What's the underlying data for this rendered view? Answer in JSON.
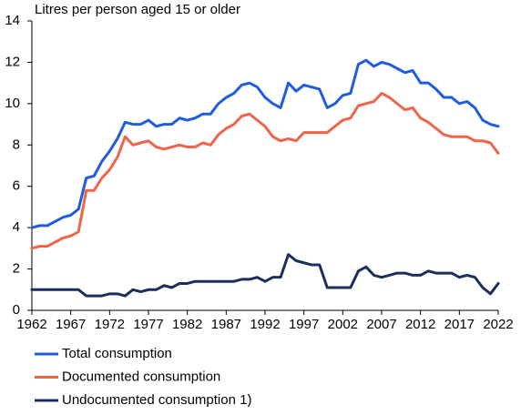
{
  "chart_data": {
    "type": "line",
    "y_axis_label": "Litres per person aged 15 or older",
    "x": [
      1962,
      1963,
      1964,
      1965,
      1966,
      1967,
      1968,
      1969,
      1970,
      1971,
      1972,
      1973,
      1974,
      1975,
      1976,
      1977,
      1978,
      1979,
      1980,
      1981,
      1982,
      1983,
      1984,
      1985,
      1986,
      1987,
      1988,
      1989,
      1990,
      1991,
      1992,
      1993,
      1994,
      1995,
      1996,
      1997,
      1998,
      1999,
      2000,
      2001,
      2002,
      2003,
      2004,
      2005,
      2006,
      2007,
      2008,
      2009,
      2010,
      2011,
      2012,
      2013,
      2014,
      2015,
      2016,
      2017,
      2018,
      2019,
      2020,
      2021,
      2022
    ],
    "series": [
      {
        "name": "Total consumption",
        "color": "#1f5ce0",
        "values": [
          4.0,
          4.1,
          4.1,
          4.3,
          4.5,
          4.6,
          4.9,
          6.4,
          6.5,
          7.2,
          7.7,
          8.3,
          9.1,
          9.0,
          9.0,
          9.2,
          8.9,
          9.0,
          9.0,
          9.3,
          9.2,
          9.3,
          9.5,
          9.5,
          10.0,
          10.3,
          10.5,
          10.9,
          11.0,
          10.8,
          10.3,
          10.0,
          9.8,
          11.0,
          10.6,
          10.9,
          10.8,
          10.7,
          9.8,
          10.0,
          10.4,
          10.5,
          11.9,
          12.1,
          11.8,
          12.0,
          11.9,
          11.7,
          11.5,
          11.6,
          11.0,
          11.0,
          10.7,
          10.3,
          10.3,
          10.0,
          10.1,
          9.8,
          9.2,
          9.0,
          8.9
        ]
      },
      {
        "name": "Documented consumption",
        "color": "#f0644a",
        "values": [
          3.0,
          3.1,
          3.1,
          3.3,
          3.5,
          3.6,
          3.8,
          5.8,
          5.8,
          6.4,
          6.8,
          7.4,
          8.4,
          8.0,
          8.1,
          8.2,
          7.9,
          7.8,
          7.9,
          8.0,
          7.9,
          7.9,
          8.1,
          8.0,
          8.5,
          8.8,
          9.0,
          9.4,
          9.5,
          9.2,
          8.9,
          8.4,
          8.2,
          8.3,
          8.2,
          8.6,
          8.6,
          8.6,
          8.6,
          8.9,
          9.2,
          9.3,
          9.9,
          10.0,
          10.1,
          10.5,
          10.3,
          10.0,
          9.7,
          9.8,
          9.3,
          9.1,
          8.8,
          8.5,
          8.4,
          8.4,
          8.4,
          8.2,
          8.2,
          8.1,
          7.6
        ]
      },
      {
        "name": "Undocumented consumption 1)",
        "color": "#1b2f5e",
        "values": [
          1.0,
          1.0,
          1.0,
          1.0,
          1.0,
          1.0,
          1.0,
          0.7,
          0.7,
          0.7,
          0.8,
          0.8,
          0.7,
          1.0,
          0.9,
          1.0,
          1.0,
          1.2,
          1.1,
          1.3,
          1.3,
          1.4,
          1.4,
          1.4,
          1.4,
          1.4,
          1.4,
          1.5,
          1.5,
          1.6,
          1.4,
          1.6,
          1.6,
          2.7,
          2.4,
          2.3,
          2.2,
          2.2,
          1.1,
          1.1,
          1.1,
          1.1,
          1.9,
          2.1,
          1.7,
          1.6,
          1.7,
          1.8,
          1.8,
          1.7,
          1.7,
          1.9,
          1.8,
          1.8,
          1.8,
          1.6,
          1.7,
          1.6,
          1.1,
          0.8,
          1.3
        ]
      }
    ],
    "xlim": [
      1962,
      2022
    ],
    "xticks": [
      1962,
      1967,
      1972,
      1977,
      1982,
      1987,
      1992,
      1997,
      2002,
      2007,
      2012,
      2017,
      2022
    ],
    "ylim": [
      0,
      14
    ],
    "yticks": [
      0,
      2,
      4,
      6,
      8,
      10,
      12,
      14
    ],
    "grid": false,
    "legend": "bottom"
  }
}
